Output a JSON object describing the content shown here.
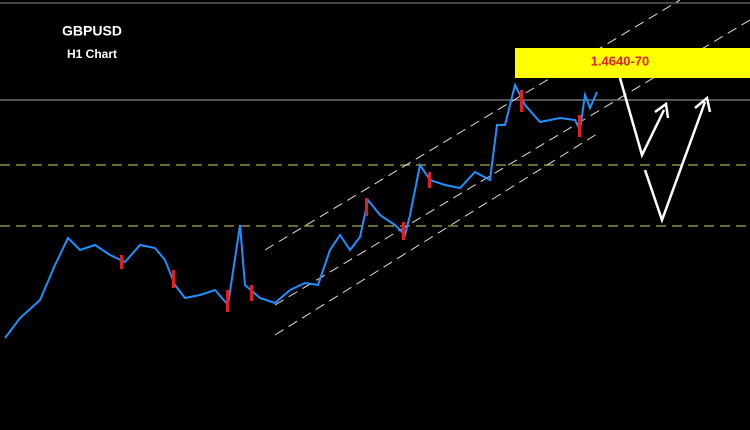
{
  "header": {
    "symbol": "GBPUSD",
    "timeframe": "H1 Chart"
  },
  "annotation": {
    "target": "1.4640-70"
  }
}
